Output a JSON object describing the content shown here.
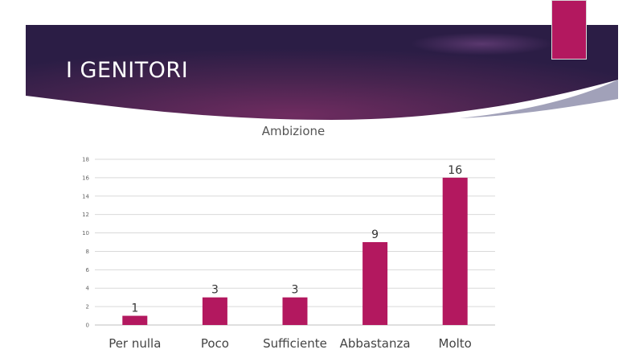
{
  "slide": {
    "title": "I GENITORI",
    "accent_color": "#b3185f",
    "banner_color_dark": "#2e1f4a",
    "banner_color_mid": "#6b2c5e"
  },
  "chart_data": {
    "type": "bar",
    "title": "Ambizione",
    "categories": [
      "Per nulla",
      "Poco",
      "Sufficiente",
      "Abbastanza",
      "Molto"
    ],
    "values": [
      1,
      3,
      3,
      9,
      16
    ],
    "ylim": [
      0,
      18
    ],
    "yticks": [
      0,
      2,
      4,
      6,
      8,
      10,
      12,
      14,
      16,
      18
    ],
    "xlabel": "",
    "ylabel": "",
    "grid": true,
    "data_labels": true,
    "legend": "none",
    "bar_color": "#b3185f"
  }
}
